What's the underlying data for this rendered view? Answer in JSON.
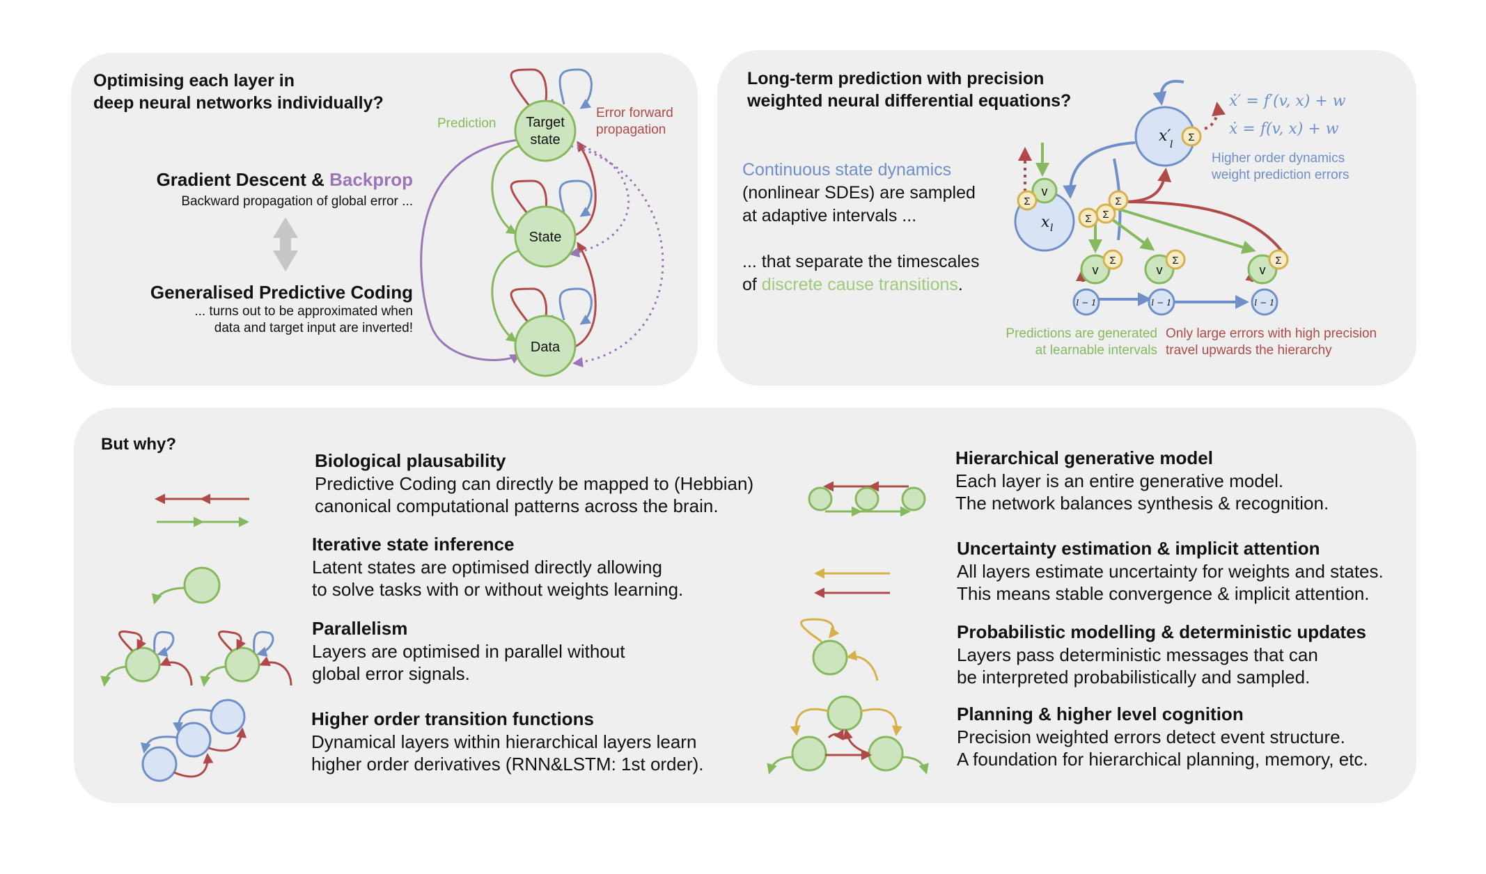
{
  "colors": {
    "green": "#86b95e",
    "green_fill": "#cde5bf",
    "red": "#b04a48",
    "blue": "#6f8fc8",
    "blue_fill": "#d8e4f6",
    "purple": "#9a76b6",
    "yellow": "#d6b048",
    "yellow_fill": "#f6ecc7",
    "panel": "#efefef",
    "gray_arrow": "#c6c6c6"
  },
  "panel1": {
    "title_line1": "Optimising each layer in",
    "title_line2": "deep neural networks individually?",
    "gd_title": "Gradient Descent & ",
    "gd_title_highlight": "Backprop",
    "gd_sub": "Backward propagation of global error ...",
    "gpc_title": "Generalised Predictive Coding",
    "gpc_sub1": "... turns out to be approximated when",
    "gpc_sub2": "data and target input are inverted!",
    "node_target_1": "Target",
    "node_target_2": "state",
    "node_state": "State",
    "node_data": "Data",
    "label_prediction": "Prediction",
    "label_error_1": "Error forward",
    "label_error_2": "propagation"
  },
  "panel2": {
    "title_line1": "Long-term prediction with precision",
    "title_line2": "weighted neural differential equations?",
    "desc1_highlight": "Continuous state dynamics",
    "desc2": "(nonlinear SDEs) are sampled",
    "desc3": "at adaptive intervals ...",
    "desc4": "... that separate the timescales",
    "desc5_prefix": "of ",
    "desc5_highlight": "discrete cause transitions",
    "desc5_suffix": ".",
    "eq1": "ẋ′ = f′(v, x) + w",
    "eq2": "ẋ = f(v, x) + w",
    "label_hod_1": "Higher order dynamics",
    "label_hod_2": "weight prediction errors",
    "label_pred_1": "Predictions are generated",
    "label_pred_2": "at learnable intervals",
    "label_err_1": "Only large errors with high precision",
    "label_err_2": "travel upwards the hierarchy",
    "node_xl": "x",
    "node_xl_sub": "l",
    "node_xlp": "x′",
    "node_xlp_sub": "l",
    "node_v": "v",
    "sigma": "Σ",
    "node_lm1": "l − 1"
  },
  "panel3": {
    "title": "But why?",
    "items": [
      {
        "title": "Biological plausability",
        "line1": "Predictive Coding can directly be mapped to (Hebbian)",
        "line2": "canonical computational patterns across the brain."
      },
      {
        "title": "Iterative state inference",
        "line1": "Latent states are optimised directly allowing",
        "line2": "to solve tasks with or without weights learning."
      },
      {
        "title": "Parallelism",
        "line1": "Layers are optimised in parallel without",
        "line2": "global error signals."
      },
      {
        "title": "Higher order transition functions",
        "line1": "Dynamical layers within hierarchical layers learn",
        "line2": "higher order derivatives (RNN&LSTM: 1st order)."
      },
      {
        "title": "Hierarchical generative model",
        "line1": "Each layer is an entire generative model.",
        "line2": "The network balances synthesis & recognition."
      },
      {
        "title": "Uncertainty estimation & implicit attention",
        "line1": "All layers estimate uncertainty for weights and states.",
        "line2": "This means stable convergence & implicit attention."
      },
      {
        "title": "Probabilistic modelling & deterministic updates",
        "line1": "Layers pass deterministic messages that can",
        "line2": "be interpreted probabilistically and sampled."
      },
      {
        "title": "Planning & higher level cognition",
        "line1": "Precision weighted errors detect event structure.",
        "line2": "A foundation for hierarchical planning, memory, etc."
      }
    ]
  }
}
